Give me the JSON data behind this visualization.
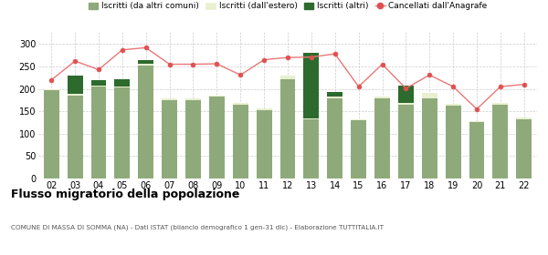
{
  "years": [
    "02",
    "03",
    "04",
    "05",
    "06",
    "07",
    "08",
    "09",
    "10",
    "11",
    "12",
    "13",
    "14",
    "15",
    "16",
    "17",
    "18",
    "19",
    "20",
    "21",
    "22"
  ],
  "iscritti_altri_comuni": [
    197,
    185,
    205,
    203,
    252,
    175,
    175,
    182,
    165,
    153,
    222,
    132,
    178,
    130,
    178,
    165,
    178,
    163,
    125,
    165,
    133
  ],
  "iscritti_estero": [
    3,
    4,
    3,
    2,
    5,
    3,
    3,
    2,
    3,
    3,
    8,
    3,
    5,
    3,
    5,
    3,
    13,
    3,
    3,
    3,
    3
  ],
  "iscritti_altri": [
    0,
    41,
    12,
    17,
    8,
    0,
    0,
    0,
    0,
    0,
    0,
    145,
    10,
    0,
    0,
    40,
    0,
    0,
    0,
    0,
    0
  ],
  "cancellati": [
    220,
    262,
    243,
    287,
    292,
    255,
    255,
    256,
    231,
    265,
    270,
    271,
    278,
    205,
    255,
    201,
    231,
    205,
    155,
    205,
    210
  ],
  "color_altri_comuni": "#8faa7a",
  "color_estero": "#e8f0d0",
  "color_altri": "#2d6a2d",
  "color_cancellati": "#e05050",
  "color_line": "#e87878",
  "title": "Flusso migratorio della popolazione",
  "subtitle": "COMUNE DI MASSA DI SOMMA (NA) - Dati ISTAT (bilancio demografico 1 gen-31 dic) - Elaborazione TUTTITALIA.IT",
  "legend_labels": [
    "Iscritti (da altri comuni)",
    "Iscritti (dall'estero)",
    "Iscritti (altri)",
    "Cancellati dall'Anagrafe"
  ],
  "ylim": [
    0,
    330
  ],
  "yticks": [
    0,
    50,
    100,
    150,
    200,
    250,
    300
  ]
}
